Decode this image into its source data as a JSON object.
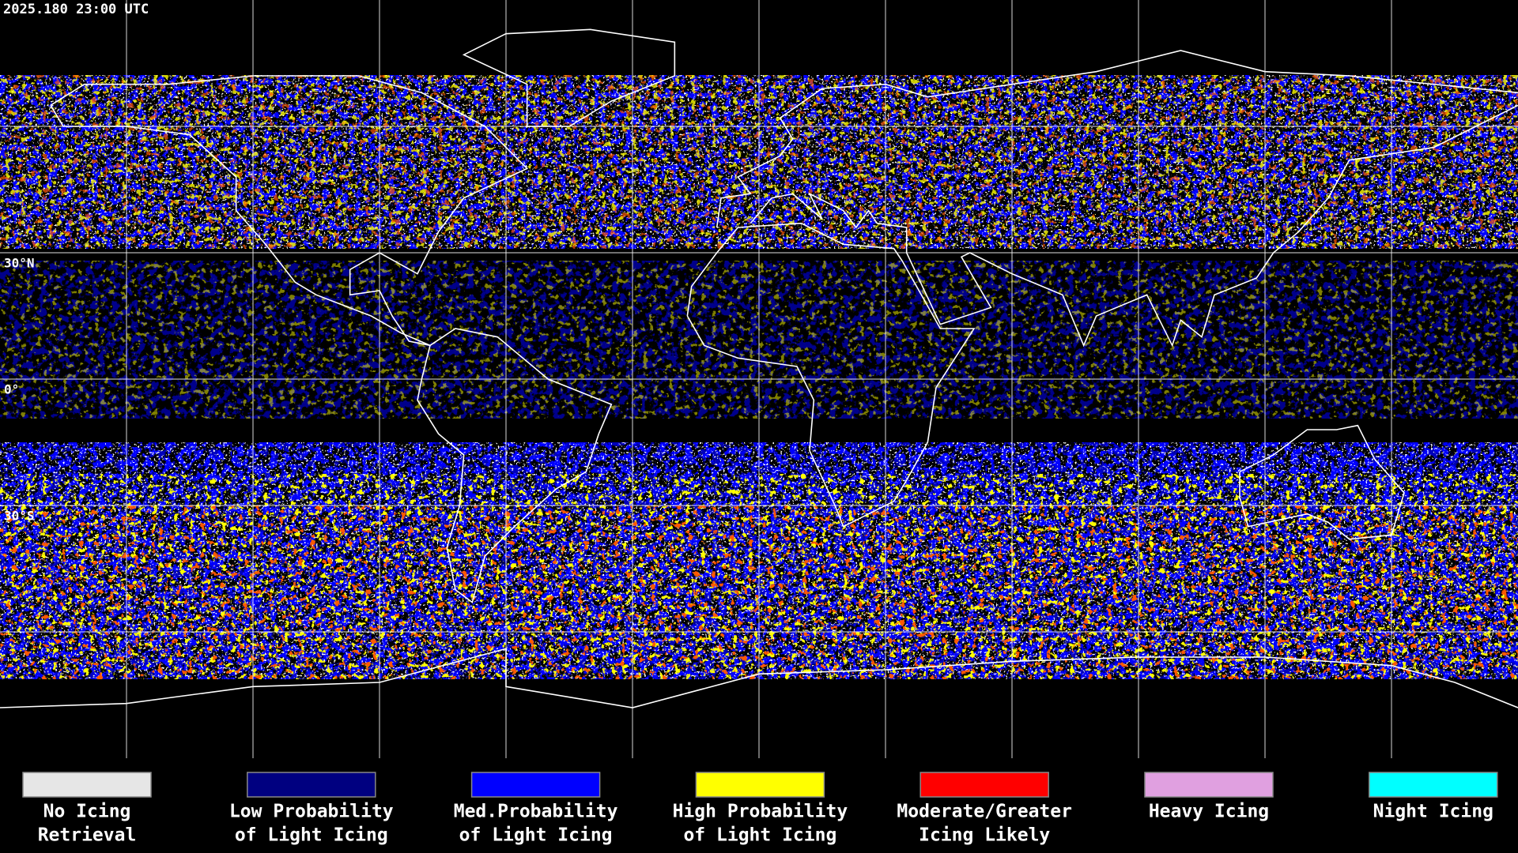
{
  "header": {
    "timestamp": "2025.180 23:00 UTC"
  },
  "map": {
    "latitude_labels": [
      "30°N",
      "0°",
      "30°S"
    ]
  },
  "legend": {
    "items": [
      {
        "label": [
          "No Icing",
          "Retrieval"
        ],
        "color": "#e6e6e6"
      },
      {
        "label": [
          "Low Probability",
          "of Light Icing"
        ],
        "color": "#000080"
      },
      {
        "label": [
          "Med.Probability",
          "of Light Icing"
        ],
        "color": "#0000ff"
      },
      {
        "label": [
          "High Probability",
          "of Light Icing"
        ],
        "color": "#ffff00"
      },
      {
        "label": [
          "Moderate/Greater",
          "Icing Likely"
        ],
        "color": "#ff0000"
      },
      {
        "label": [
          "Heavy Icing"
        ],
        "color": "#e0a0e0"
      },
      {
        "label": [
          "Night Icing"
        ],
        "color": "#00ffff"
      }
    ]
  }
}
